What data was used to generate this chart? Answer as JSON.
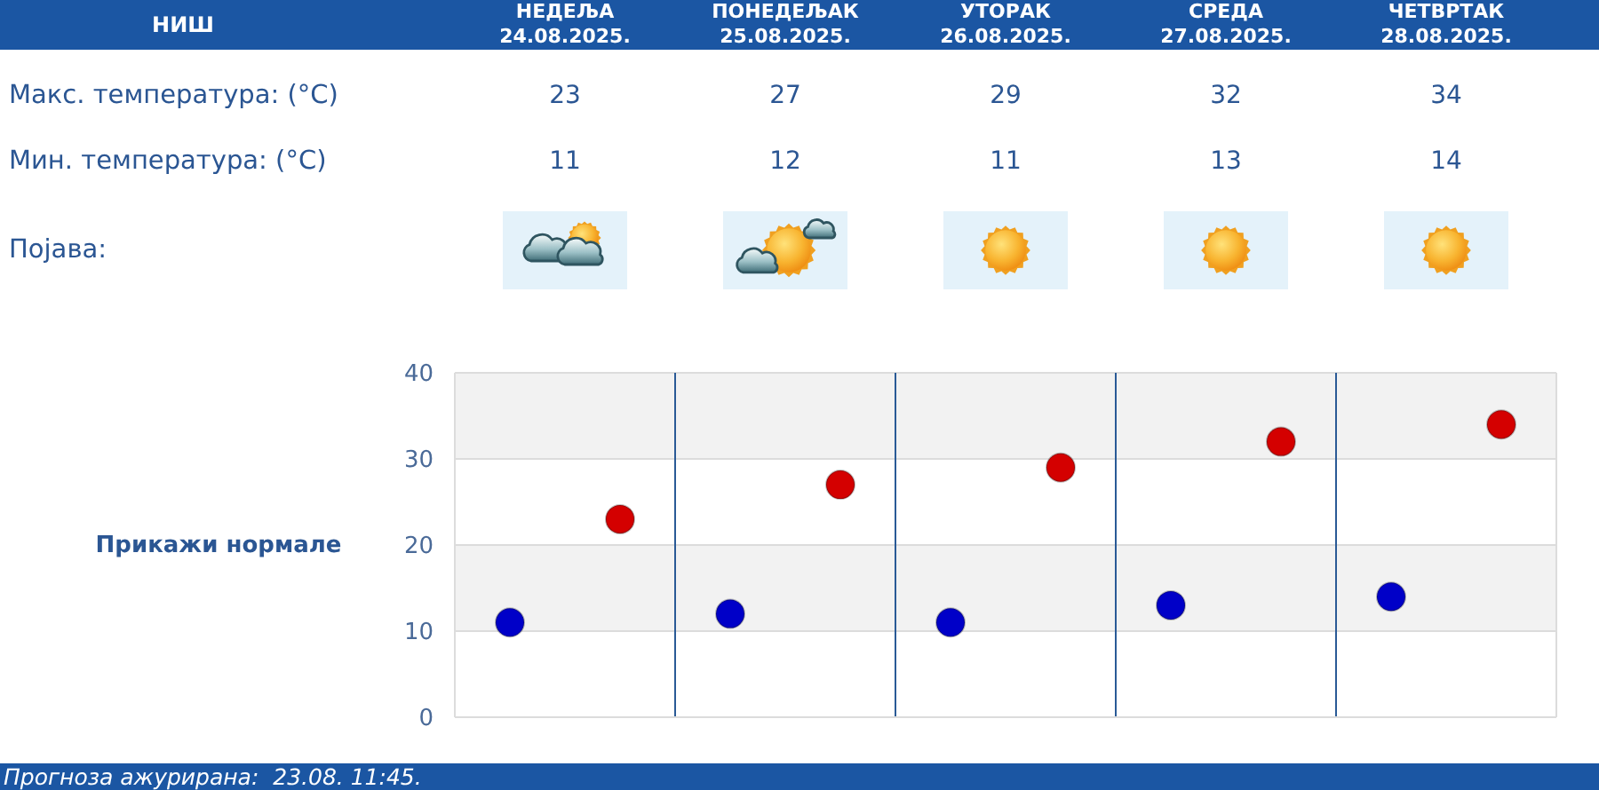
{
  "chart_data": {
    "type": "scatter",
    "title": "НИШ",
    "categories": [
      null,
      null,
      null,
      null,
      null
    ],
    "series": [
      {
        "color": "#d40000",
        "values": [
          23,
          27,
          29,
          32,
          34
        ]
      },
      {
        "color": "#0000c8",
        "values": [
          11,
          12,
          11,
          13,
          14
        ]
      }
    ],
    "ylim": [
      0,
      40
    ],
    "yticks": [
      0,
      10,
      20,
      30,
      40
    ],
    "grid": true,
    "marker": "circle",
    "data_labels": true,
    "annotations": [
      "НЕДЕЉА 24.08.2025.",
      "ПОНЕДЕЉАК 25.08.2025.",
      "УТОРАК 26.08.2025.",
      "СРЕДА 27.08.2025.",
      "ЧЕТВРТАК 28.08.2025.",
      "Макс. температура: (°C)",
      "Мин. температура: (°C)",
      "Појава:",
      "Прикажи нормале",
      "Прогноза ажурирана:  23.08. 11:45."
    ]
  }
}
